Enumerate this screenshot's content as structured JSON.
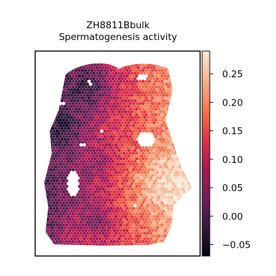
{
  "chart_data": {
    "type": "heatmap",
    "title": "ZH8811Bbulk",
    "subtitle": "Spermatogenesis activity",
    "xlabel": "",
    "ylabel": "",
    "grid": false,
    "colormap": "rocket",
    "colorbar": {
      "range": [
        -0.07,
        0.29
      ],
      "ticks": [
        -0.05,
        0.0,
        0.05,
        0.1,
        0.15,
        0.2,
        0.25
      ],
      "tick_labels": [
        "−0.05",
        "0.00",
        "0.05",
        "0.10",
        "0.15",
        "0.20",
        "0.25"
      ]
    },
    "colormap_stops": [
      "#03051a",
      "#35193e",
      "#701f57",
      "#ad1759",
      "#e13342",
      "#f37651",
      "#f6b48f",
      "#faebdd"
    ]
  }
}
